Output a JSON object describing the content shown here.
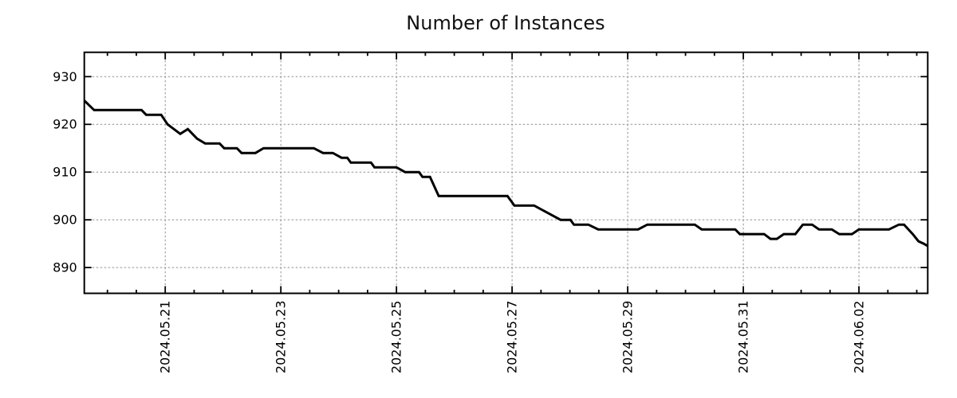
{
  "chart_data": {
    "type": "line",
    "title": "Number of Instances",
    "x_axis": {
      "epoch_date": "2024-05-19",
      "unit": "days since 2024-05-19 00:00",
      "xlim": [
        0.6,
        15.19
      ],
      "major_ticks": [
        {
          "t": 2,
          "label": "2024.05.21"
        },
        {
          "t": 4,
          "label": "2024.05.23"
        },
        {
          "t": 6,
          "label": "2024.05.25"
        },
        {
          "t": 8,
          "label": "2024.05.27"
        },
        {
          "t": 10,
          "label": "2024.05.29"
        },
        {
          "t": 12,
          "label": "2024.05.31"
        },
        {
          "t": 14,
          "label": "2024.06.02"
        }
      ],
      "minor_ticks": {
        "start": 1.0,
        "step": 0.5,
        "end": 15.0
      }
    },
    "y_axis": {
      "ylim": [
        884.6,
        935.1
      ],
      "major_ticks": [
        890,
        900,
        910,
        920,
        930
      ]
    },
    "grid": {
      "show": true,
      "color": "#909090",
      "dash": [
        2.5,
        2.5
      ]
    },
    "legend": {
      "show": false
    },
    "series": [
      {
        "name": "instances",
        "color": "#000000",
        "stroke_width": 3,
        "points": [
          [
            0.6,
            925
          ],
          [
            0.77,
            923
          ],
          [
            1.59,
            923
          ],
          [
            1.67,
            922
          ],
          [
            1.93,
            922
          ],
          [
            2.04,
            920
          ],
          [
            2.26,
            918
          ],
          [
            2.39,
            919
          ],
          [
            2.55,
            917
          ],
          [
            2.69,
            916
          ],
          [
            2.94,
            916
          ],
          [
            3.02,
            915
          ],
          [
            3.24,
            915
          ],
          [
            3.32,
            914
          ],
          [
            3.56,
            914
          ],
          [
            3.7,
            915
          ],
          [
            4.57,
            915
          ],
          [
            4.73,
            914
          ],
          [
            4.9,
            914
          ],
          [
            5.05,
            913
          ],
          [
            5.15,
            913
          ],
          [
            5.21,
            912
          ],
          [
            5.56,
            912
          ],
          [
            5.62,
            911
          ],
          [
            6.0,
            911
          ],
          [
            6.15,
            910
          ],
          [
            6.39,
            910
          ],
          [
            6.45,
            909
          ],
          [
            6.58,
            909
          ],
          [
            6.73,
            905
          ],
          [
            7.92,
            905
          ],
          [
            8.04,
            903
          ],
          [
            8.38,
            903
          ],
          [
            8.84,
            900
          ],
          [
            9.01,
            900
          ],
          [
            9.07,
            899
          ],
          [
            9.32,
            899
          ],
          [
            9.49,
            898
          ],
          [
            10.18,
            898
          ],
          [
            10.34,
            899
          ],
          [
            11.16,
            899
          ],
          [
            11.28,
            898
          ],
          [
            11.86,
            898
          ],
          [
            11.94,
            897
          ],
          [
            12.36,
            897
          ],
          [
            12.47,
            896
          ],
          [
            12.58,
            896
          ],
          [
            12.7,
            897
          ],
          [
            12.9,
            897
          ],
          [
            13.03,
            899
          ],
          [
            13.19,
            899
          ],
          [
            13.31,
            898
          ],
          [
            13.53,
            898
          ],
          [
            13.66,
            897
          ],
          [
            13.88,
            897
          ],
          [
            14.0,
            898
          ],
          [
            14.52,
            898
          ],
          [
            14.69,
            899
          ],
          [
            14.78,
            899
          ],
          [
            14.93,
            897
          ],
          [
            15.03,
            895.5
          ],
          [
            15.12,
            895
          ],
          [
            15.19,
            894.5
          ]
        ]
      }
    ]
  },
  "styles": {
    "background": "#ffffff",
    "axis_color": "#000000",
    "text_color": "#000000",
    "title_color": "#111111"
  }
}
